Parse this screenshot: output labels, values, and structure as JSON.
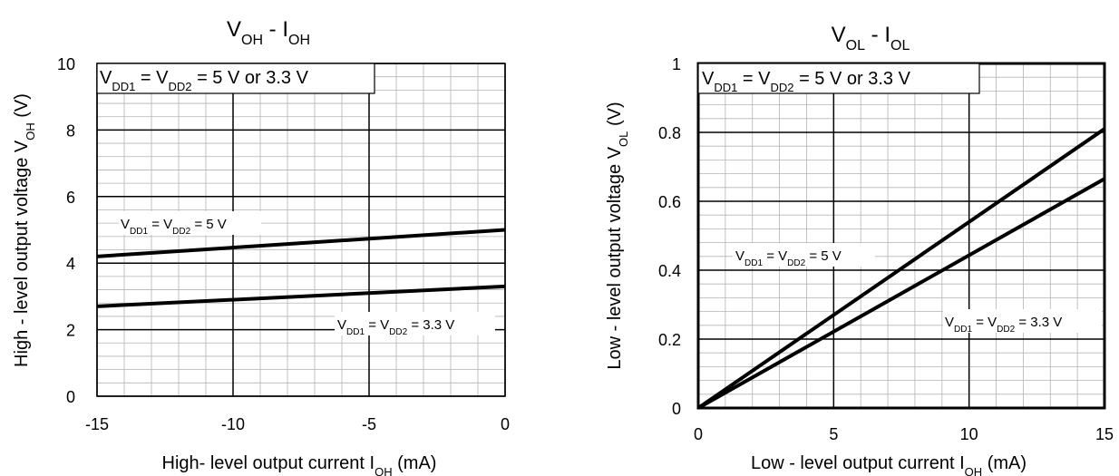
{
  "chart_data": [
    {
      "type": "line",
      "title": {
        "main": "V",
        "sub": "OH",
        "sep": " - ",
        "main2": "I",
        "sub2": "OH"
      },
      "xlabel": {
        "pre": "High- level output current I",
        "sub": "OH",
        "post": " (mA)"
      },
      "ylabel": {
        "pre": "High - level output voltage V",
        "sub": "OH",
        "post": " (V)"
      },
      "xlim": [
        -15,
        0
      ],
      "ylim": [
        0,
        10
      ],
      "xticks": [
        -15,
        -10,
        -5,
        0
      ],
      "yticks": [
        0,
        2,
        4,
        6,
        8,
        10
      ],
      "minor_x_step": 1,
      "minor_y_step": 0.4,
      "grid": true,
      "legend": "top-left",
      "condition": [
        [
          "V",
          ""
        ],
        [
          "DD1",
          "sub"
        ],
        [
          " = V",
          ""
        ],
        [
          "DD2",
          "sub"
        ],
        [
          " = 5 V or 3.3 V",
          ""
        ]
      ],
      "series": [
        {
          "x": [
            -15,
            0
          ],
          "y": [
            4.2,
            5.0
          ],
          "label": [
            [
              "V",
              ""
            ],
            [
              "DD1",
              "sub"
            ],
            [
              " = V",
              ""
            ],
            [
              "DD2",
              "sub"
            ],
            [
              " = 5 V",
              ""
            ]
          ]
        },
        {
          "x": [
            -15,
            0
          ],
          "y": [
            2.7,
            3.3
          ],
          "label": [
            [
              "V",
              ""
            ],
            [
              "DD1",
              "sub"
            ],
            [
              " = V",
              ""
            ],
            [
              "DD2",
              "sub"
            ],
            [
              " = 3.3 V",
              ""
            ]
          ]
        }
      ]
    },
    {
      "type": "line",
      "title": {
        "main": "V",
        "sub": "OL",
        "sep": " - ",
        "main2": "I",
        "sub2": "OL"
      },
      "xlabel": {
        "pre": "Low - level output current I",
        "sub": "OH",
        "post": " (mA)"
      },
      "ylabel": {
        "pre": "Low - level output voltage V",
        "sub": "OL",
        "post": " (V)"
      },
      "xlim": [
        0,
        15
      ],
      "ylim": [
        0,
        1
      ],
      "xticks": [
        0,
        5,
        10,
        15
      ],
      "yticks": [
        0,
        0.2,
        0.4,
        0.6,
        0.8,
        1
      ],
      "minor_x_step": 1,
      "minor_y_step": 0.04,
      "grid": true,
      "legend": "top-left",
      "condition": [
        [
          "V",
          ""
        ],
        [
          "DD1",
          "sub"
        ],
        [
          " = V",
          ""
        ],
        [
          "DD2",
          "sub"
        ],
        [
          " = 5 V or 3.3 V",
          ""
        ]
      ],
      "series": [
        {
          "x": [
            0,
            15
          ],
          "y": [
            0,
            0.81
          ],
          "label": [
            [
              "V",
              ""
            ],
            [
              "DD1",
              "sub"
            ],
            [
              " = V",
              ""
            ],
            [
              "DD2",
              "sub"
            ],
            [
              " = 5 V",
              ""
            ]
          ]
        },
        {
          "x": [
            0,
            15
          ],
          "y": [
            0,
            0.665
          ],
          "label": [
            [
              "V",
              ""
            ],
            [
              "DD1",
              "sub"
            ],
            [
              " = V",
              ""
            ],
            [
              "DD2",
              "sub"
            ],
            [
              " = 3.3 V",
              ""
            ]
          ]
        }
      ]
    }
  ]
}
